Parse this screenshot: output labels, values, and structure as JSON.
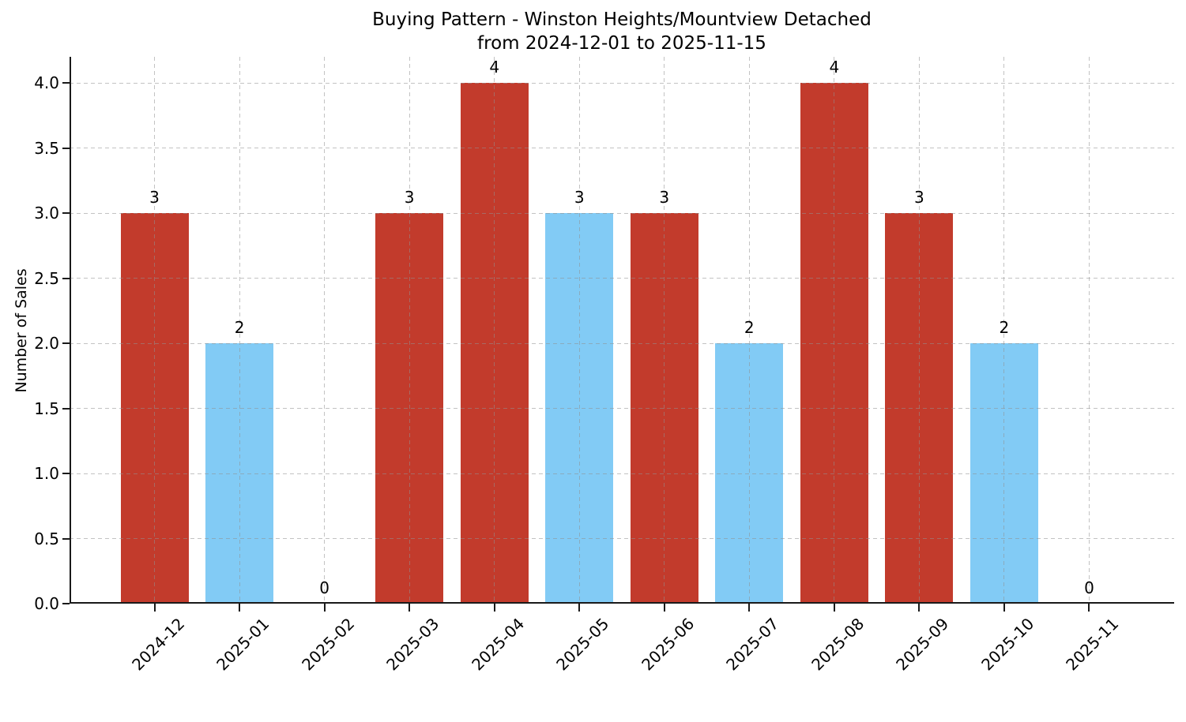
{
  "chart_data": {
    "type": "bar",
    "title": "Buying Pattern - Winston Heights/Mountview Detached",
    "subtitle": "from 2024-12-01 to 2025-11-15",
    "xlabel": "",
    "ylabel": "Number of Sales",
    "categories": [
      "2024-12",
      "2025-01",
      "2025-02",
      "2025-03",
      "2025-04",
      "2025-05",
      "2025-06",
      "2025-07",
      "2025-08",
      "2025-09",
      "2025-10",
      "2025-11"
    ],
    "values": [
      3,
      2,
      0,
      3,
      4,
      3,
      3,
      2,
      4,
      3,
      2,
      0
    ],
    "bar_colors": [
      "#c23b2c",
      "#82cbf5",
      null,
      "#c23b2c",
      "#c23b2c",
      "#82cbf5",
      "#c23b2c",
      "#82cbf5",
      "#c23b2c",
      "#c23b2c",
      "#82cbf5",
      null
    ],
    "y_ticks": [
      0,
      0.5,
      1,
      1.5,
      2,
      2.5,
      3,
      3.5,
      4
    ],
    "y_tick_labels": [
      "0.0",
      "0.5",
      "1.0",
      "1.5",
      "2.0",
      "2.5",
      "3.0",
      "3.5",
      "4.0"
    ],
    "ylim": [
      0,
      4.2
    ],
    "grid": true,
    "grid_style": "dashed",
    "legend": "none",
    "colors": {
      "red_bar": "#c23b2c",
      "blue_bar": "#82cbf5",
      "grid": "#cdcdcd",
      "axis": "#1a1a1a",
      "text": "#000000",
      "background": "#ffffff"
    }
  }
}
